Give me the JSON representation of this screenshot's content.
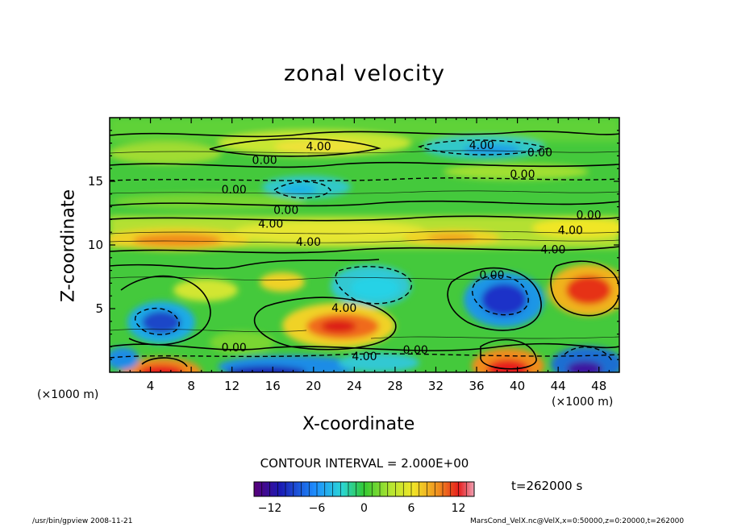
{
  "chart_data": {
    "type": "heatmap",
    "title": "zonal velocity",
    "xlabel": "X-coordinate",
    "ylabel": "Z-coordinate",
    "x_unit_left": "(×1000 m)",
    "x_unit_right": "(×1000 m)",
    "xlim": [
      0,
      50
    ],
    "ylim": [
      0,
      20
    ],
    "x_ticks": [
      "4",
      "8",
      "12",
      "16",
      "20",
      "24",
      "28",
      "32",
      "36",
      "40",
      "44",
      "48"
    ],
    "y_ticks": [
      "5",
      "10",
      "15"
    ],
    "contour_labels": [
      {
        "text": "4.00",
        "x": 20.5,
        "y": 17.7
      },
      {
        "text": "0.00",
        "x": 15.2,
        "y": 16.6
      },
      {
        "text": "4.00",
        "x": 36.5,
        "y": 17.8
      },
      {
        "text": "0.00",
        "x": 42.2,
        "y": 17.2
      },
      {
        "text": "0.00",
        "x": 40.5,
        "y": 15.5
      },
      {
        "text": "0.00",
        "x": 12.2,
        "y": 14.3
      },
      {
        "text": "0.00",
        "x": 17.3,
        "y": 12.7
      },
      {
        "text": "4.00",
        "x": 15.8,
        "y": 11.6
      },
      {
        "text": "4.00",
        "x": 19.5,
        "y": 10.2
      },
      {
        "text": "0.00",
        "x": 47.0,
        "y": 12.3
      },
      {
        "text": "4.00",
        "x": 45.2,
        "y": 11.1
      },
      {
        "text": "4.00",
        "x": 43.5,
        "y": 9.6
      },
      {
        "text": "0.00",
        "x": 37.5,
        "y": 7.6
      },
      {
        "text": "4.00",
        "x": 23.0,
        "y": 5.0
      },
      {
        "text": "0.00",
        "x": 12.2,
        "y": 1.9
      },
      {
        "text": "4.00",
        "x": 25.0,
        "y": 1.2
      },
      {
        "text": "0.00",
        "x": 30.0,
        "y": 1.7
      }
    ],
    "colorbar": {
      "range": [
        -14,
        14
      ],
      "ticks": [
        "−12",
        "−6",
        "0",
        "6",
        "12"
      ],
      "tick_values": [
        -12,
        -6,
        0,
        6,
        12
      ]
    },
    "contour_interval": "CONTOUR INTERVAL = 2.000E+00",
    "time": "t=262000 s"
  },
  "footer": {
    "left": "/usr/bin/gpview  2008-11-21",
    "right": "MarsCond_VelX.nc@VelX,x=0:50000,z=0:20000,t=262000"
  },
  "colors": {
    "frame": "#000000",
    "background": "#ffffff"
  }
}
